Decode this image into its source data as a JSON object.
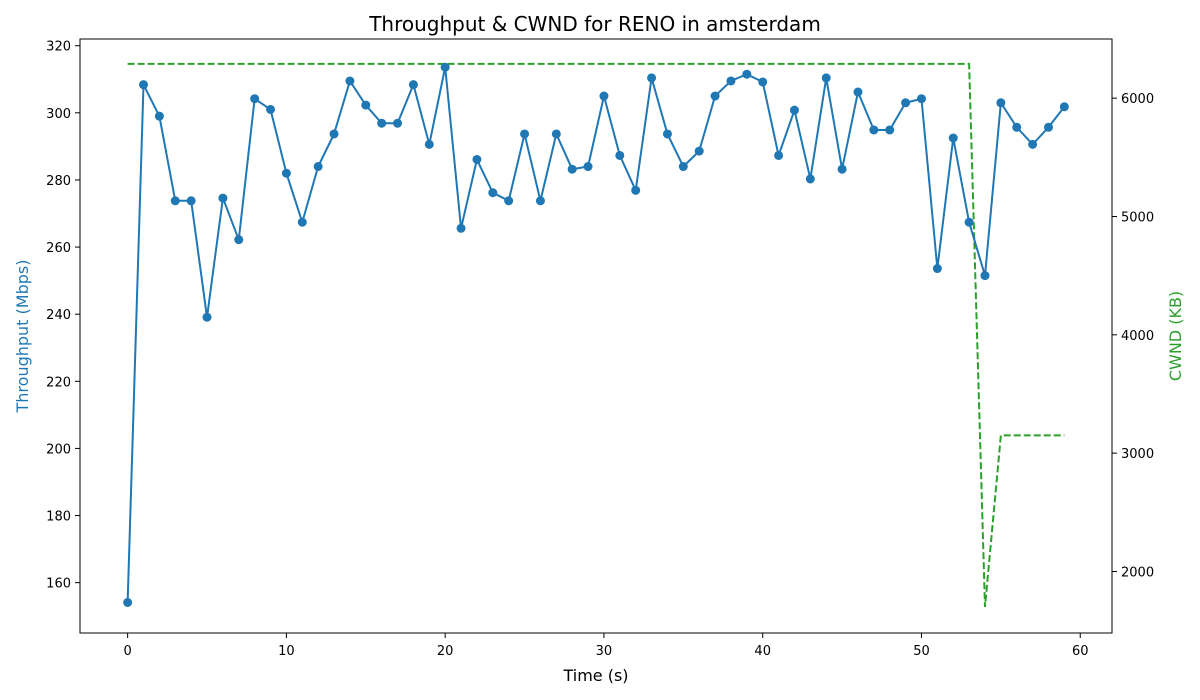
{
  "chart_data": {
    "type": "line",
    "title": "Throughput & CWND for RENO in amsterdam",
    "xlabel": "Time (s)",
    "ylabel_left": "Throughput (Mbps)",
    "ylabel_right": "CWND (KB)",
    "xlim": [
      -3,
      62
    ],
    "ylim_left": [
      145,
      322
    ],
    "ylim_right": [
      1480,
      6500
    ],
    "xticks": [
      0,
      10,
      20,
      30,
      40,
      50,
      60
    ],
    "yticks_left": [
      160,
      180,
      200,
      220,
      240,
      260,
      280,
      300,
      320
    ],
    "yticks_right": [
      2000,
      3000,
      4000,
      5000,
      6000
    ],
    "grid": false,
    "colors": {
      "throughput": "#1f77b4",
      "cwnd": "#2ca02c"
    },
    "series": [
      {
        "axis": "left",
        "style": "solid-with-markers",
        "x": [
          0,
          1,
          2,
          3,
          4,
          5,
          6,
          7,
          8,
          9,
          10,
          11,
          12,
          13,
          14,
          15,
          16,
          17,
          18,
          19,
          20,
          21,
          22,
          23,
          24,
          25,
          26,
          27,
          28,
          29,
          30,
          31,
          32,
          33,
          34,
          35,
          36,
          37,
          38,
          39,
          40,
          41,
          42,
          43,
          44,
          45,
          46,
          47,
          48,
          49,
          50,
          51,
          52,
          53,
          54,
          55,
          56,
          57,
          58,
          59
        ],
        "values": [
          154.1,
          308.4,
          299.0,
          273.8,
          273.8,
          239.1,
          274.6,
          262.2,
          304.2,
          301.0,
          282.0,
          267.4,
          284.0,
          293.7,
          309.5,
          302.3,
          296.9,
          296.9,
          308.4,
          290.6,
          313.6,
          265.6,
          286.1,
          276.2,
          273.8,
          293.7,
          273.8,
          293.7,
          283.2,
          284.0,
          305.0,
          287.3,
          276.9,
          310.4,
          293.7,
          284.0,
          288.6,
          305.0,
          309.5,
          311.5,
          309.2,
          287.3,
          300.8,
          280.3,
          310.4,
          283.2,
          306.2,
          294.9,
          294.9,
          303.0,
          304.2,
          253.6,
          292.5,
          267.4,
          251.5,
          303.0,
          295.7,
          290.6,
          295.7,
          301.8
        ]
      },
      {
        "axis": "right",
        "style": "dashed",
        "x": [
          0,
          53,
          54,
          55,
          59
        ],
        "values": [
          6290,
          6290,
          1700,
          3150,
          3150
        ]
      }
    ]
  }
}
